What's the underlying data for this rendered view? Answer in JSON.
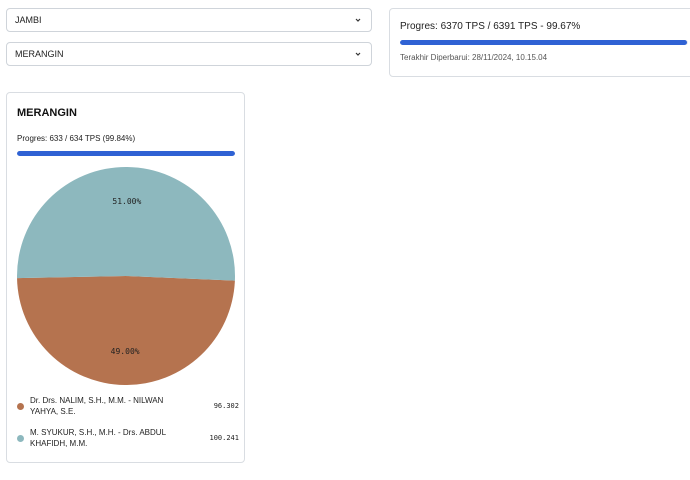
{
  "filters": {
    "province": "JAMBI",
    "regency": "MERANGIN"
  },
  "summary": {
    "progress_text": "Progres: 6370 TPS / 6391 TPS - 99.67%",
    "progress_fraction": 0.9967,
    "updated_text": "Terakhir Diperbarui: 28/11/2024, 10.15.04"
  },
  "card": {
    "title": "MERANGIN",
    "progress_text": "Progres: 633 / 634 TPS (99.84%)",
    "progress_fraction": 0.9984
  },
  "chart_data": {
    "type": "pie",
    "slices": [
      {
        "label": "Dr. Drs. NALIM, S.H., M.M. - NILWAN YAHYA, S.E.",
        "value": 96302,
        "value_text": "96.302",
        "percent": 49.0,
        "percent_text": "49.00%",
        "color": "#b5734f"
      },
      {
        "label": "M. SYUKUR, S.H., M.H. - Drs. ABDUL KHAFIDH, M.M.",
        "value": 100241,
        "value_text": "100.241",
        "percent": 51.0,
        "percent_text": "51.00%",
        "color": "#8db8be"
      }
    ]
  },
  "icons": {
    "select_chevron": "chevron-down-icon"
  }
}
